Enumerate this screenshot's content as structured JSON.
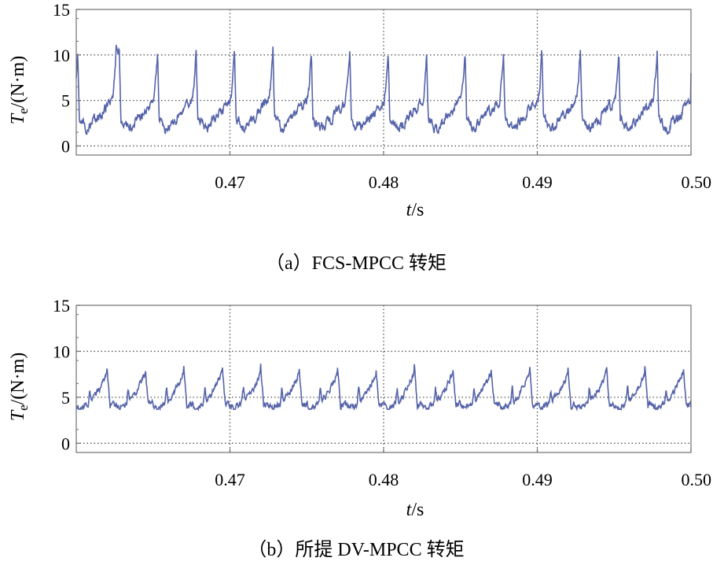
{
  "colors": {
    "trace": "#5563a8",
    "grid": "#555555",
    "frame": "#707070"
  },
  "chart_data": [
    {
      "type": "line",
      "caption": "（a）FCS-MPCC 转矩",
      "ylabel": {
        "symbol": "T",
        "subscript": "e",
        "unit": "/(N·m)"
      },
      "xlabel": {
        "symbol": "t",
        "unit": "/s"
      },
      "xlim": [
        0.46,
        0.5
      ],
      "ylim": [
        -1,
        15
      ],
      "xticks": [
        0.47,
        0.48,
        0.49,
        0.5
      ],
      "xtick_labels": [
        "0.47",
        "0.48",
        "0.49",
        "0.50"
      ],
      "yticks": [
        0,
        5,
        10,
        15
      ],
      "ytick_labels": [
        "0",
        "5",
        "10",
        "15"
      ],
      "grid": true,
      "series": [
        {
          "peaks_t": [
            0.4601,
            0.4628,
            0.4653,
            0.4678,
            0.4703,
            0.4728,
            0.4753,
            0.4778,
            0.4803,
            0.4828,
            0.4853,
            0.4878,
            0.4903,
            0.4928,
            0.4953,
            0.4978
          ],
          "peak_value": 10.5,
          "trough_value": 1.8,
          "mean_value": 4.2,
          "end_value": 8.0
        }
      ]
    },
    {
      "type": "line",
      "caption": "（b）所提 DV-MPCC 转矩",
      "ylabel": {
        "symbol": "T",
        "subscript": "e",
        "unit": "/(N·m)"
      },
      "xlabel": {
        "symbol": "t",
        "unit": "/s"
      },
      "xlim": [
        0.46,
        0.5
      ],
      "ylim": [
        -1,
        15
      ],
      "xticks": [
        0.47,
        0.48,
        0.49,
        0.5
      ],
      "xtick_labels": [
        "0.47",
        "0.48",
        "0.49",
        "0.50"
      ],
      "yticks": [
        0,
        5,
        10,
        15
      ],
      "ytick_labels": [
        "0",
        "5",
        "10",
        "15"
      ],
      "grid": true,
      "series": [
        {
          "peaks_t": [
            0.462,
            0.4645,
            0.467,
            0.4695,
            0.472,
            0.4745,
            0.477,
            0.4795,
            0.482,
            0.4845,
            0.487,
            0.4895,
            0.492,
            0.4945,
            0.497,
            0.4995
          ],
          "peak_value": 8.3,
          "trough_value": 4.0,
          "mean_value": 4.9,
          "end_value": 3.9
        }
      ]
    }
  ]
}
